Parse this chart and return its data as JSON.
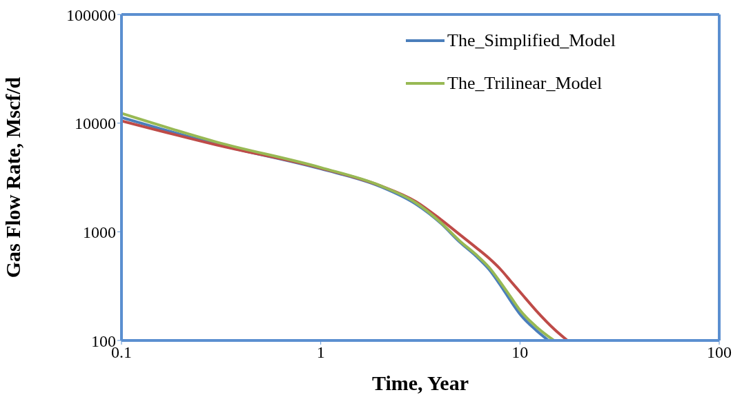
{
  "chart_data": {
    "type": "line",
    "xlabel": "Time, Year",
    "ylabel": "Gas Flow Rate, Mscf/d",
    "log": "xy",
    "xlim": [
      0.1,
      100
    ],
    "xticks": [
      0.1,
      1,
      10,
      100
    ],
    "ylim": [
      100,
      100000
    ],
    "yticks": [
      100,
      1000,
      10000,
      100000
    ],
    "legend": "top right",
    "marker": "none",
    "line_style": "solid",
    "series": [
      {
        "name": "The_Simplified_Model",
        "color": "#4a7ebb",
        "x": [
          0.1,
          0.3,
          1,
          2,
          3,
          4,
          5,
          6,
          7,
          8,
          9,
          10,
          12,
          13.9
        ],
        "values": [
          11300,
          6400,
          3800,
          2600,
          1800,
          1200,
          800,
          600,
          450,
          320,
          230,
          175,
          125,
          100
        ]
      },
      {
        "color": "#be4b48",
        "x": [
          0.1,
          0.3,
          1,
          2,
          3,
          4,
          5,
          6,
          7,
          8,
          9,
          10,
          12,
          15,
          17.3
        ],
        "values": [
          10500,
          6300,
          3850,
          2650,
          1900,
          1300,
          940,
          720,
          570,
          450,
          350,
          280,
          190,
          125,
          100
        ]
      },
      {
        "name": "The_Trilinear_Model",
        "color": "#98b954",
        "x": [
          0.1,
          0.3,
          1,
          2,
          3,
          4,
          5,
          6,
          7,
          8,
          9,
          10,
          12,
          14.8
        ],
        "values": [
          12300,
          6700,
          3900,
          2650,
          1850,
          1220,
          820,
          620,
          470,
          340,
          250,
          190,
          135,
          100
        ]
      }
    ]
  }
}
